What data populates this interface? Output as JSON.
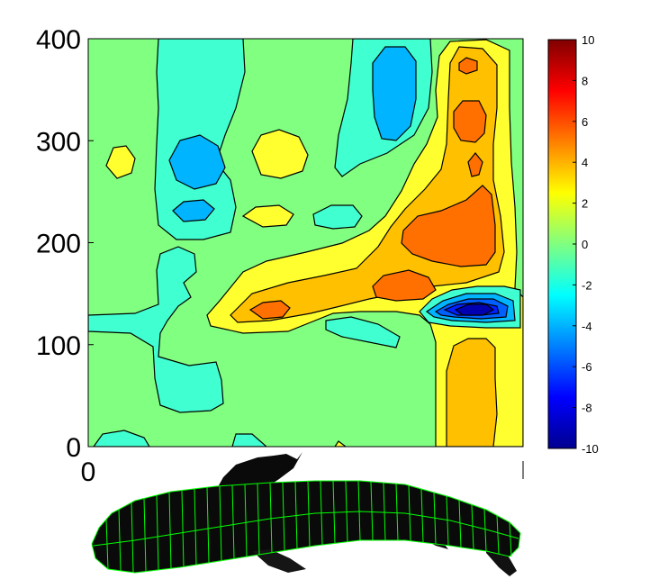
{
  "chart_data": {
    "type": "heatmap",
    "title": "",
    "xlabel": "",
    "ylabel": "",
    "ylim": [
      0,
      400
    ],
    "yticks": [
      "0",
      "100",
      "200",
      "300",
      "400"
    ],
    "xticks": [
      "0"
    ],
    "colorbar": {
      "range": [
        -10,
        10
      ],
      "ticks": [
        "10",
        "8",
        "6",
        "4",
        "2",
        "0",
        "-2",
        "-4",
        "-6",
        "-8",
        "-10"
      ],
      "colormap": "jet"
    },
    "contour_levels": [
      -8,
      -6,
      -4,
      -2,
      0,
      2,
      4,
      6,
      8
    ],
    "notable_regions": [
      {
        "x_frac": 0.91,
        "y": 133,
        "value": -10
      },
      {
        "x_frac": 0.52,
        "y": 380,
        "value": -3
      },
      {
        "x_frac": 0.25,
        "y": 280,
        "value": -3.5
      },
      {
        "x_frac": 0.41,
        "y": 150,
        "value": 5
      },
      {
        "x_frac": 0.85,
        "y": 210,
        "value": 5
      },
      {
        "x_frac": 0.88,
        "y": 375,
        "value": 6
      },
      {
        "x_frac": 0.92,
        "y": 60,
        "value": 3
      }
    ]
  },
  "colors": {
    "background_level": "#80ff80",
    "contour_line": "#000000",
    "fish_grid": "#00ff00"
  }
}
